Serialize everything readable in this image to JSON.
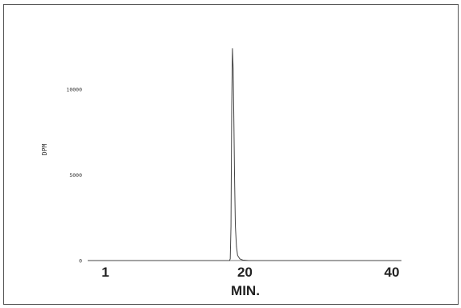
{
  "chart_data": {
    "type": "line",
    "title": "",
    "xlabel": "MIN.",
    "ylabel": "DPM",
    "xlim": [
      -3,
      42
    ],
    "ylim": [
      0,
      12500
    ],
    "x_ticks": [
      {
        "value": 1,
        "label": "1"
      },
      {
        "value": 20,
        "label": "20"
      },
      {
        "value": 40,
        "label": "40"
      }
    ],
    "y_ticks": [
      {
        "value": 0,
        "label": "0"
      },
      {
        "value": 5000,
        "label": "5000"
      },
      {
        "value": 10000,
        "label": "10000"
      }
    ],
    "grid": false,
    "series": [
      {
        "color": "#444444",
        "x": [
          -3,
          10,
          17.9,
          18.0,
          18.1,
          18.2,
          18.3,
          18.4,
          18.5,
          18.6,
          18.7,
          18.85,
          19.0,
          19.3,
          19.7,
          20.5,
          25,
          30,
          35,
          40,
          42
        ],
        "y": [
          0,
          0,
          0,
          100,
          2000,
          9000,
          12400,
          11200,
          8000,
          4500,
          2000,
          800,
          300,
          100,
          30,
          0,
          0,
          0,
          0,
          0,
          0
        ]
      }
    ]
  }
}
